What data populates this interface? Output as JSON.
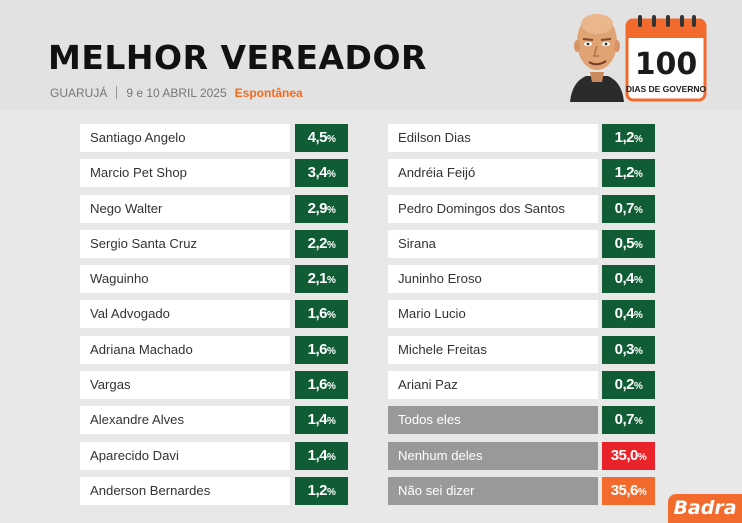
{
  "header": {
    "title": "MELHOR VEREADOR",
    "location": "GUARUJÁ",
    "dates": "9 e 10 ABRIL 2025",
    "type": "Espontânea",
    "badge_number": "100",
    "badge_label": "DIAS DE GOVERNO"
  },
  "left_column": [
    {
      "name": "Santiago Angelo",
      "value": "4,5"
    },
    {
      "name": "Marcio Pet Shop",
      "value": "3,4"
    },
    {
      "name": "Nego Walter",
      "value": "2,9"
    },
    {
      "name": "Sergio Santa Cruz",
      "value": "2,2"
    },
    {
      "name": "Waguinho",
      "value": "2,1"
    },
    {
      "name": "Val Advogado",
      "value": "1,6"
    },
    {
      "name": "Adriana Machado",
      "value": "1,6"
    },
    {
      "name": "Vargas",
      "value": "1,6"
    },
    {
      "name": "Alexandre Alves",
      "value": "1,4"
    },
    {
      "name": "Aparecido Davi",
      "value": "1,4"
    },
    {
      "name": "Anderson Bernardes",
      "value": "1,2"
    }
  ],
  "right_column": [
    {
      "name": "Edilson Dias",
      "value": "1,2"
    },
    {
      "name": "Andréia Feijó",
      "value": "1,2"
    },
    {
      "name": "Pedro Domingos dos Santos",
      "value": "0,7"
    },
    {
      "name": "Sirana",
      "value": "0,5"
    },
    {
      "name": "Juninho Eroso",
      "value": "0,4"
    },
    {
      "name": "Mario Lucio",
      "value": "0,4"
    },
    {
      "name": "Michele Freitas",
      "value": "0,3"
    },
    {
      "name": "Ariani Paz",
      "value": "0,2"
    },
    {
      "name": "Todos eles",
      "value": "0,7"
    },
    {
      "name": "Nenhum deles",
      "value": "35,0"
    },
    {
      "name": "Não sei dizer",
      "value": "35,6"
    }
  ],
  "percent_symbol": "%",
  "brand": "Badra",
  "colors": {
    "value_green": "#0f5c35",
    "accent_orange": "#f26b2d",
    "alert_red": "#e8232a",
    "neutral_gray": "#999999"
  }
}
